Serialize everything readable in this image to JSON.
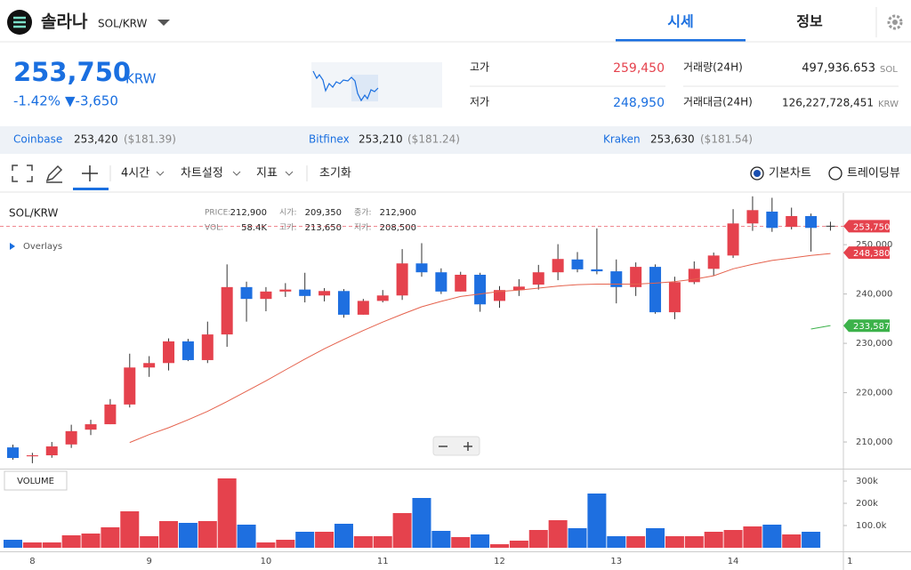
{
  "header": {
    "name": "솔라나",
    "symbol": "SOL/KRW",
    "tabs": [
      "시세",
      "정보"
    ]
  },
  "price": {
    "current": "253,750",
    "currency": "KRW",
    "change_percent": "-1.42%",
    "change": "▼-3,650"
  },
  "stats": {
    "high_label": "고가",
    "high": "259,450",
    "low_label": "저가",
    "low": "248,950",
    "volume_label": "거래량(24H)",
    "volume": "497,936.653",
    "volume_unit": "SOL",
    "value_label": "거래대금(24H)",
    "value": "126,227,728,451",
    "value_unit": "KRW"
  },
  "exchanges": [
    {
      "name": "Coinbase",
      "price": "253,420",
      "usd": "($181.39)"
    },
    {
      "name": "Bitfinex",
      "price": "253,210",
      "usd": "($181.24)"
    },
    {
      "name": "Kraken",
      "price": "253,630",
      "usd": "($181.54)"
    }
  ],
  "toolbar": {
    "interval": "4시간",
    "settings": "차트설정",
    "indicators": "지표",
    "reset": "초기화",
    "modes": [
      "기본차트",
      "트레이딩뷰"
    ]
  },
  "chart_data": {
    "type": "candlestick",
    "title": "SOL/KRW",
    "overlays": "Overlays",
    "volume_label": "VOLUME",
    "info": [
      {
        "label": "PRICE:",
        "value": "212,900"
      },
      {
        "label": "시가:",
        "value": "209,350"
      },
      {
        "label": "종가:",
        "value": "212,900"
      },
      {
        "label": "VOL:",
        "value": "58.4K"
      },
      {
        "label": "고가:",
        "value": "213,650"
      },
      {
        "label": "저가:",
        "value": "208,500"
      }
    ],
    "categories": [
      null,
      "8",
      null,
      null,
      null,
      null,
      null,
      "9",
      null,
      null,
      null,
      null,
      null,
      "10",
      null,
      null,
      null,
      null,
      null,
      "11",
      null,
      null,
      null,
      null,
      null,
      "12",
      null,
      null,
      null,
      null,
      null,
      "13",
      null,
      null,
      null,
      null,
      null,
      "14",
      null,
      null,
      null,
      null,
      null,
      "1"
    ],
    "open": [
      208900,
      207100,
      207300,
      209500,
      212500,
      213600,
      217600,
      225100,
      226000,
      230400,
      226600,
      231800,
      241400,
      239000,
      240500,
      240900,
      239700,
      240600,
      235800,
      238600,
      239700,
      246200,
      244400,
      240500,
      243900,
      238600,
      240800,
      241900,
      244400,
      247000,
      245000,
      244600,
      241400,
      245500,
      236300,
      242400,
      245100,
      247800,
      254300,
      256700,
      253600,
      255800,
      null,
      null
    ],
    "high": [
      209460,
      207800,
      210000,
      213500,
      214500,
      218700,
      227900,
      227400,
      231000,
      230900,
      234400,
      246000,
      242500,
      241400,
      242200,
      244300,
      241200,
      241000,
      239000,
      240800,
      249100,
      250300,
      245200,
      244500,
      244300,
      241600,
      243000,
      245900,
      250100,
      248500,
      253300,
      247000,
      246400,
      246000,
      243500,
      246600,
      248400,
      257200,
      259800,
      259500,
      257500,
      256300,
      null,
      null
    ],
    "low": [
      206400,
      205700,
      206800,
      208800,
      211400,
      213600,
      217000,
      223200,
      224500,
      226400,
      226000,
      229300,
      234400,
      236500,
      239400,
      238300,
      238500,
      235200,
      235800,
      238300,
      238800,
      243500,
      240000,
      240500,
      236400,
      237200,
      239600,
      240900,
      242800,
      244400,
      244000,
      238100,
      239600,
      236000,
      234900,
      242000,
      243700,
      247300,
      252800,
      252600,
      253100,
      248600,
      null,
      null
    ],
    "close": [
      206760,
      207300,
      209100,
      212200,
      213600,
      217600,
      225100,
      226000,
      230400,
      226600,
      231800,
      241400,
      239000,
      240500,
      240900,
      239600,
      240600,
      235800,
      238600,
      239700,
      246200,
      244400,
      240500,
      243900,
      237900,
      240800,
      241500,
      244400,
      247100,
      245000,
      244600,
      241400,
      245500,
      236300,
      242400,
      245100,
      247800,
      254300,
      257000,
      253400,
      255800,
      253400,
      null,
      null
    ],
    "volume": [
      36000,
      24000,
      24000,
      56000,
      64000,
      92000,
      164000,
      52000,
      120000,
      112000,
      120000,
      312000,
      104000,
      24000,
      36000,
      72000,
      72000,
      108000,
      52000,
      52000,
      156000,
      224000,
      76000,
      48000,
      60000,
      16000,
      32000,
      80000,
      124000,
      88000,
      244000,
      52000,
      52000,
      88000,
      52000,
      52000,
      72000,
      80000,
      96000,
      104000,
      60000,
      72000,
      null,
      null
    ],
    "up_color": "#e5424d",
    "down_color": "#1e6fe0",
    "ylim": [
      204600,
      260300
    ],
    "yticks": [
      {
        "value": 210000,
        "label": "210,000"
      },
      {
        "value": 220000,
        "label": "220,000"
      },
      {
        "value": 230000,
        "label": "230,000"
      },
      {
        "value": 240000,
        "label": "240,000"
      },
      {
        "value": 250000,
        "label": "250,000"
      }
    ],
    "volume_ylim": [
      0,
      344000
    ],
    "volume_yticks": [
      {
        "value": 100000,
        "label": "100.0k"
      },
      {
        "value": 200000,
        "label": "200k"
      },
      {
        "value": 300000,
        "label": "300k"
      }
    ],
    "series": [
      {
        "color": "#e5624d",
        "values": [
          null,
          null,
          null,
          null,
          null,
          null,
          209900,
          211500,
          212900,
          214500,
          216200,
          218200,
          220300,
          222400,
          224600,
          226800,
          228900,
          230800,
          232600,
          234300,
          235900,
          237400,
          238500,
          239500,
          240000,
          240500,
          240800,
          241200,
          241600,
          241900,
          242000,
          242000,
          242000,
          242200,
          242500,
          243000,
          243700,
          245100,
          246000,
          246800,
          247300,
          247800,
          248200,
          null
        ]
      },
      {
        "color": "#3cb24a",
        "values": [
          null,
          null,
          null,
          null,
          null,
          null,
          null,
          null,
          null,
          null,
          null,
          null,
          null,
          null,
          null,
          null,
          null,
          null,
          null,
          null,
          null,
          null,
          null,
          null,
          null,
          null,
          null,
          null,
          null,
          null,
          null,
          null,
          null,
          null,
          null,
          null,
          null,
          null,
          null,
          null,
          null,
          232900,
          233600,
          null
        ]
      }
    ],
    "price_tags": [
      {
        "value": 253750,
        "label": "253,750",
        "color": "#e5424d"
      },
      {
        "value": 248380,
        "label": "248,380",
        "color": "#e5424d"
      },
      {
        "value": 233587,
        "label": "233,587",
        "color": "#3cb24a"
      }
    ]
  }
}
